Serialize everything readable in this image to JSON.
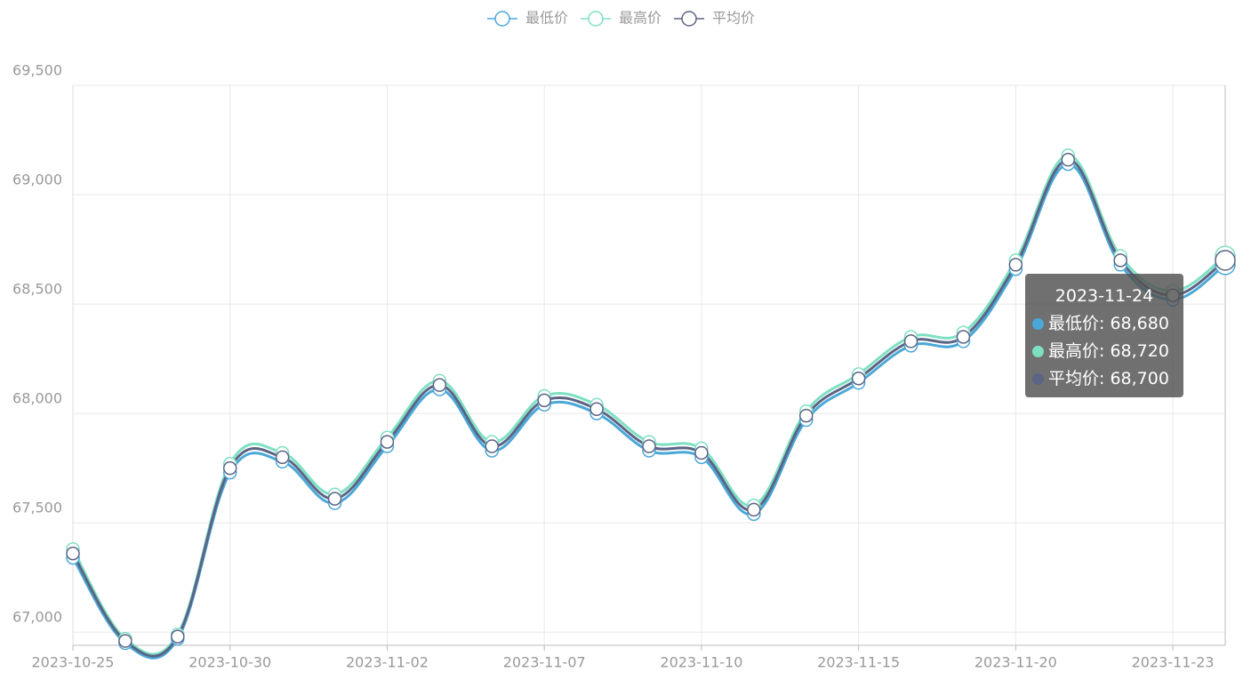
{
  "chart_data": {
    "type": "line",
    "categories": [
      "2023-10-25",
      null,
      null,
      "2023-10-30",
      null,
      null,
      "2023-11-02",
      null,
      null,
      "2023-11-07",
      null,
      null,
      "2023-11-10",
      null,
      null,
      "2023-11-15",
      null,
      null,
      "2023-11-20",
      null,
      null,
      "2023-11-23",
      null
    ],
    "series": [
      {
        "name": "最低价",
        "color": "#4aa8d8",
        "values": [
          67340,
          66950,
          66970,
          67730,
          67780,
          67590,
          67850,
          68110,
          67830,
          68040,
          68000,
          67830,
          67800,
          67540,
          67970,
          68140,
          68310,
          68330,
          68660,
          69140,
          68680,
          68520,
          68680
        ]
      },
      {
        "name": "最高价",
        "color": "#7ee0c3",
        "values": [
          67380,
          66970,
          66990,
          67770,
          67820,
          67630,
          67890,
          68150,
          67870,
          68080,
          68040,
          67870,
          67840,
          67580,
          68010,
          68180,
          68350,
          68370,
          68700,
          69180,
          68720,
          68560,
          68720
        ]
      },
      {
        "name": "平均价",
        "color": "#5b6485",
        "values": [
          67360,
          66960,
          66980,
          67750,
          67800,
          67610,
          67870,
          68130,
          67850,
          68060,
          68020,
          67850,
          67820,
          67560,
          67990,
          68160,
          68330,
          68350,
          68680,
          69160,
          68700,
          68540,
          68700
        ]
      }
    ],
    "ylim": [
      66940,
      69500
    ],
    "yticks": [
      {
        "value": 67000,
        "label": "67,000"
      },
      {
        "value": 67500,
        "label": "67,500"
      },
      {
        "value": 68000,
        "label": "68,000"
      },
      {
        "value": 68500,
        "label": "68,500"
      },
      {
        "value": 69000,
        "label": "69,000"
      },
      {
        "value": 69500,
        "label": "69,500"
      }
    ],
    "grid": true,
    "legend": "top",
    "tooltip": {
      "title": "2023-11-24",
      "rows": [
        "最低价: 68,680",
        "最高价: 68,720",
        "平均价: 68,700"
      ]
    }
  }
}
